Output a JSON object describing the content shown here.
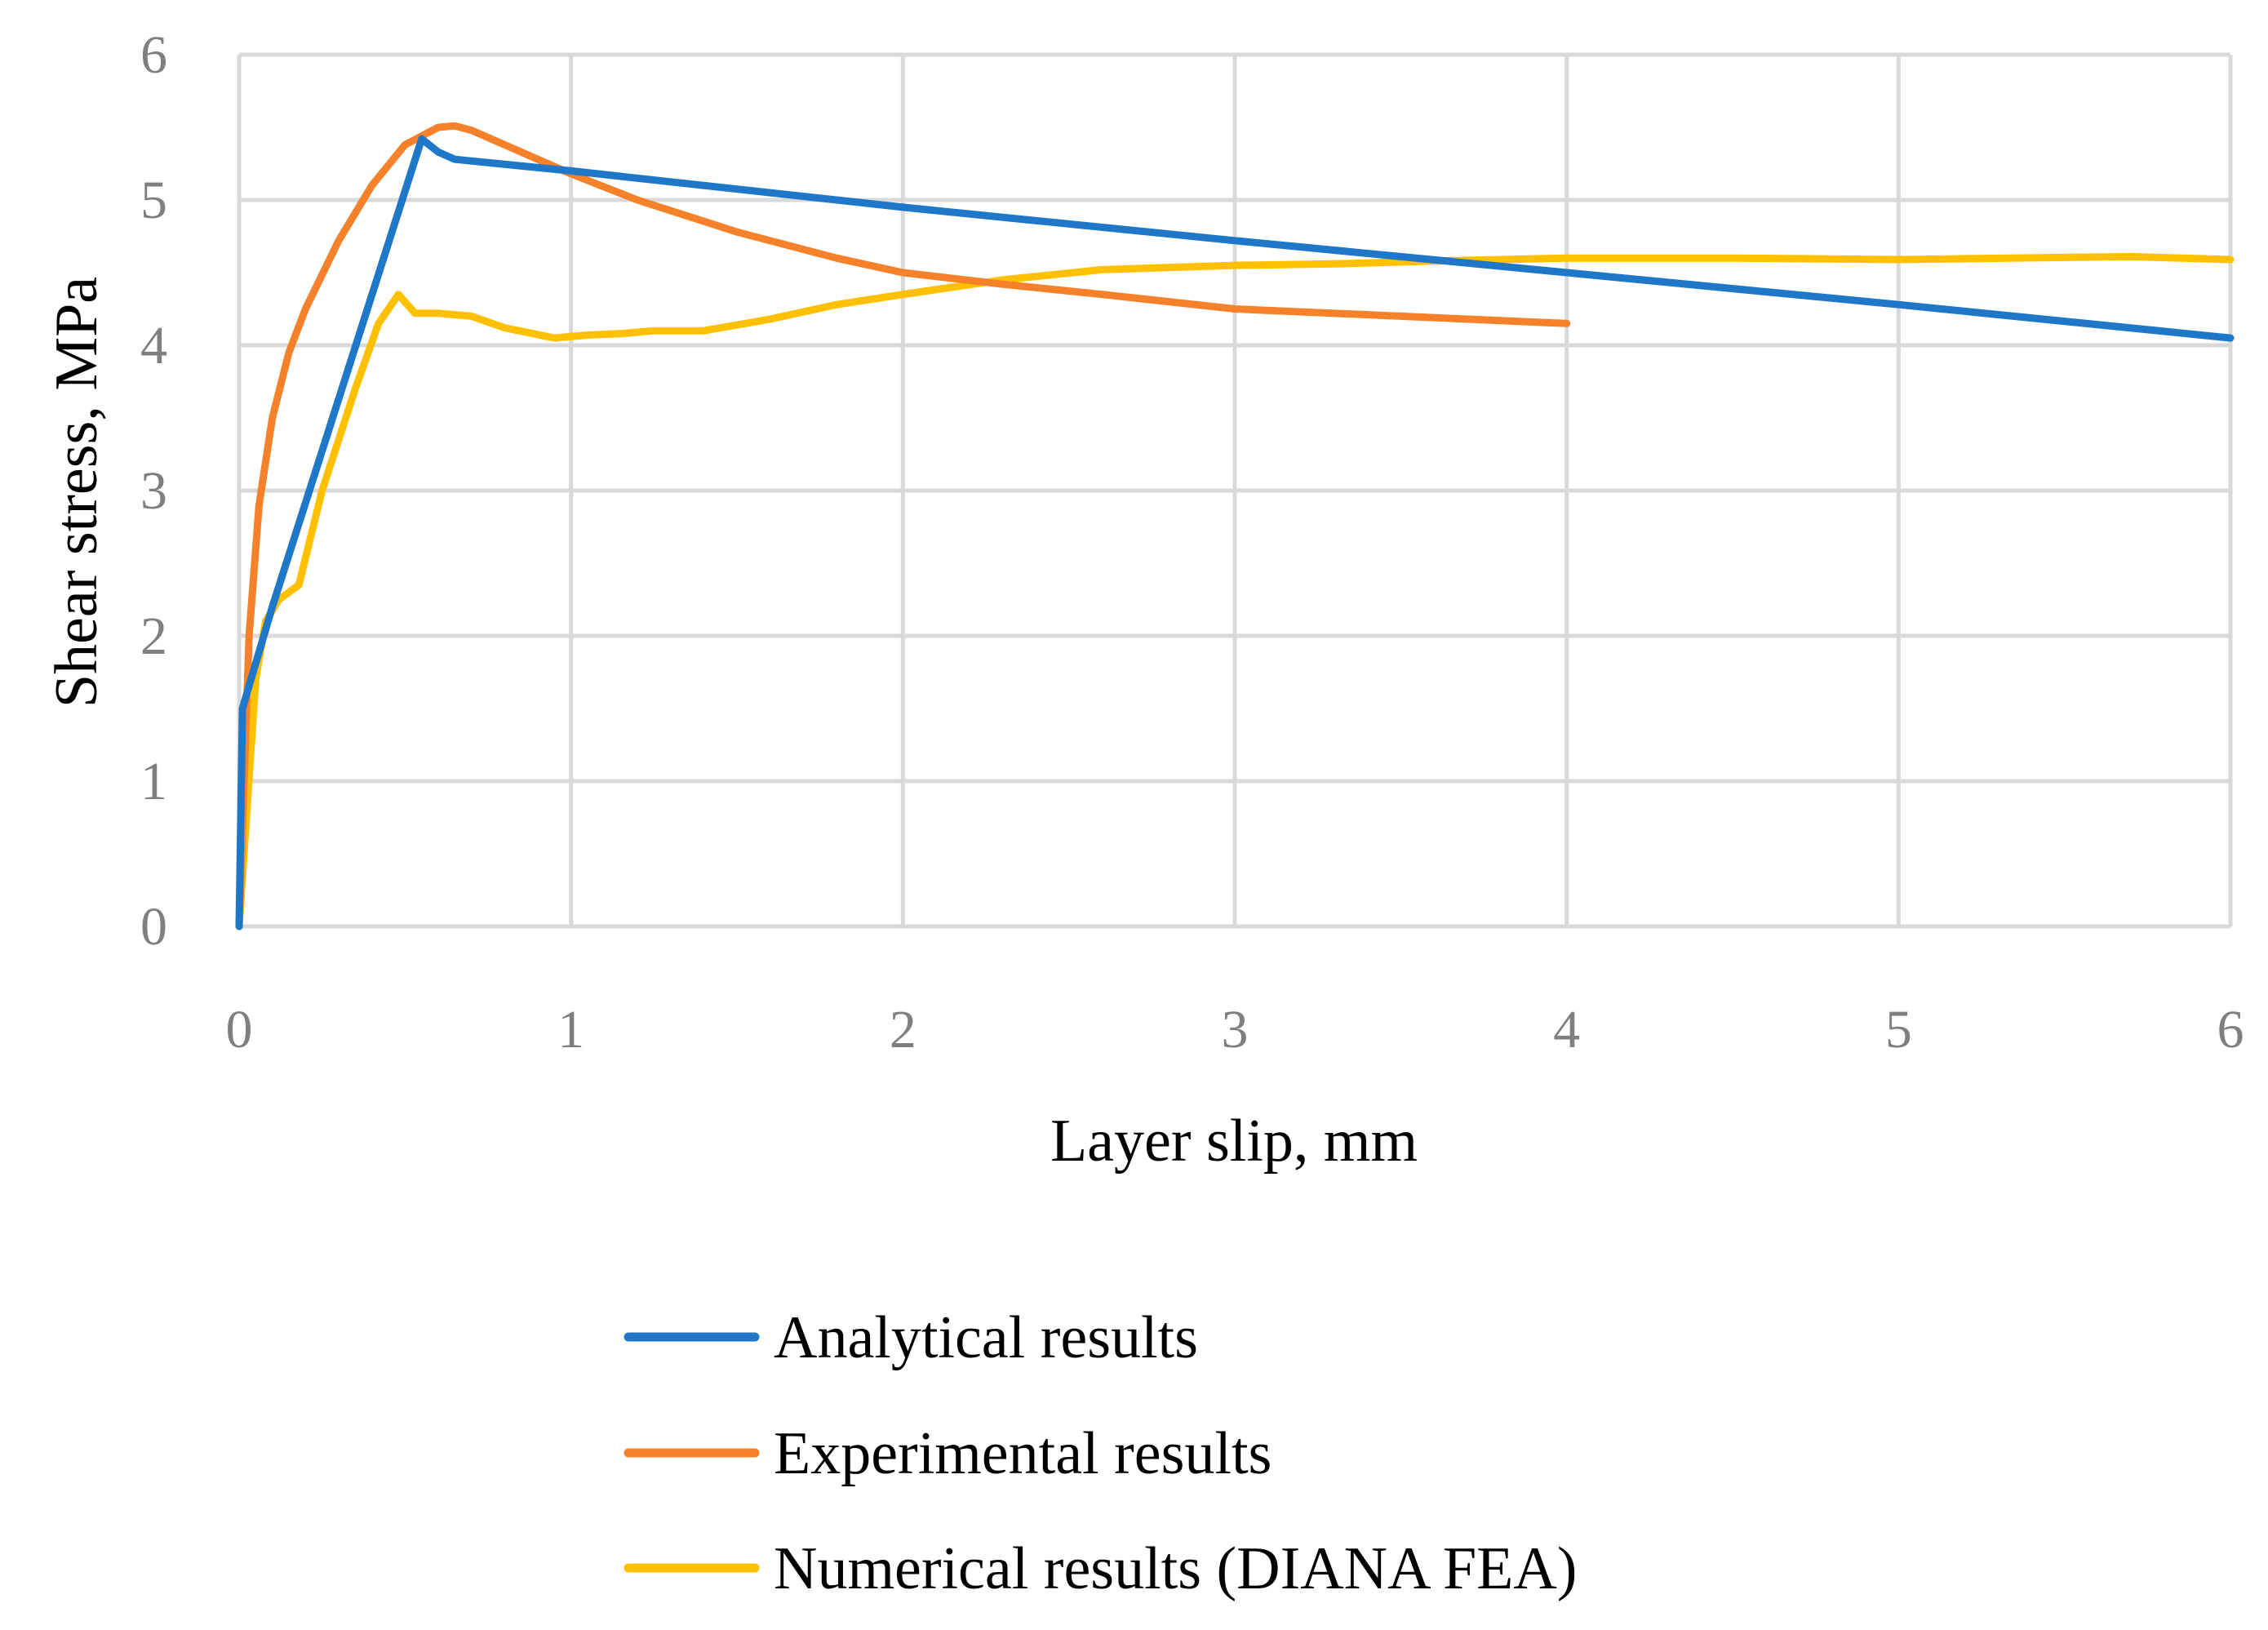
{
  "chart_data": {
    "type": "line",
    "title": "",
    "xlabel": "Layer slip, mm",
    "ylabel": "Shear stress, MPa",
    "xlim": [
      0,
      6
    ],
    "ylim": [
      0,
      6
    ],
    "xticks": [
      "0",
      "1",
      "2",
      "3",
      "4",
      "5",
      "6"
    ],
    "yticks": [
      "0",
      "1",
      "2",
      "3",
      "4",
      "5",
      "6"
    ],
    "grid": true,
    "legend_position": "bottom",
    "series": [
      {
        "name": "Analytical results",
        "color": "#1f77c8",
        "x": [
          0,
          0.01,
          0.1,
          0.55,
          0.6,
          0.65,
          1.0,
          2.0,
          3.0,
          4.0,
          5.0,
          6.0
        ],
        "y": [
          0,
          1.5,
          2.2,
          5.42,
          5.33,
          5.28,
          5.2,
          4.95,
          4.72,
          4.5,
          4.28,
          4.05
        ]
      },
      {
        "name": "Experimental results",
        "color": "#f5822a",
        "x": [
          0,
          0.03,
          0.06,
          0.1,
          0.15,
          0.2,
          0.3,
          0.4,
          0.5,
          0.6,
          0.65,
          0.7,
          0.8,
          1.0,
          1.2,
          1.5,
          1.8,
          2.0,
          2.3,
          2.6,
          3.0,
          3.5,
          4.0
        ],
        "y": [
          0,
          2.0,
          2.9,
          3.5,
          3.95,
          4.25,
          4.72,
          5.1,
          5.38,
          5.5,
          5.51,
          5.48,
          5.38,
          5.18,
          5.0,
          4.78,
          4.6,
          4.5,
          4.42,
          4.35,
          4.25,
          4.2,
          4.15
        ]
      },
      {
        "name": "Numerical results (DIANA FEA)",
        "color": "#ffc000",
        "x": [
          0,
          0.05,
          0.08,
          0.12,
          0.18,
          0.25,
          0.35,
          0.42,
          0.48,
          0.53,
          0.6,
          0.7,
          0.8,
          0.95,
          1.05,
          1.15,
          1.25,
          1.4,
          1.6,
          1.8,
          2.0,
          2.3,
          2.6,
          3.0,
          3.3,
          3.6,
          4.0,
          4.5,
          5.0,
          5.7,
          6.0
        ],
        "y": [
          0,
          1.7,
          2.1,
          2.25,
          2.35,
          3.0,
          3.7,
          4.15,
          4.35,
          4.22,
          4.22,
          4.2,
          4.12,
          4.05,
          4.07,
          4.08,
          4.1,
          4.1,
          4.18,
          4.28,
          4.35,
          4.45,
          4.52,
          4.55,
          4.56,
          4.58,
          4.6,
          4.6,
          4.59,
          4.61,
          4.59
        ]
      }
    ]
  }
}
